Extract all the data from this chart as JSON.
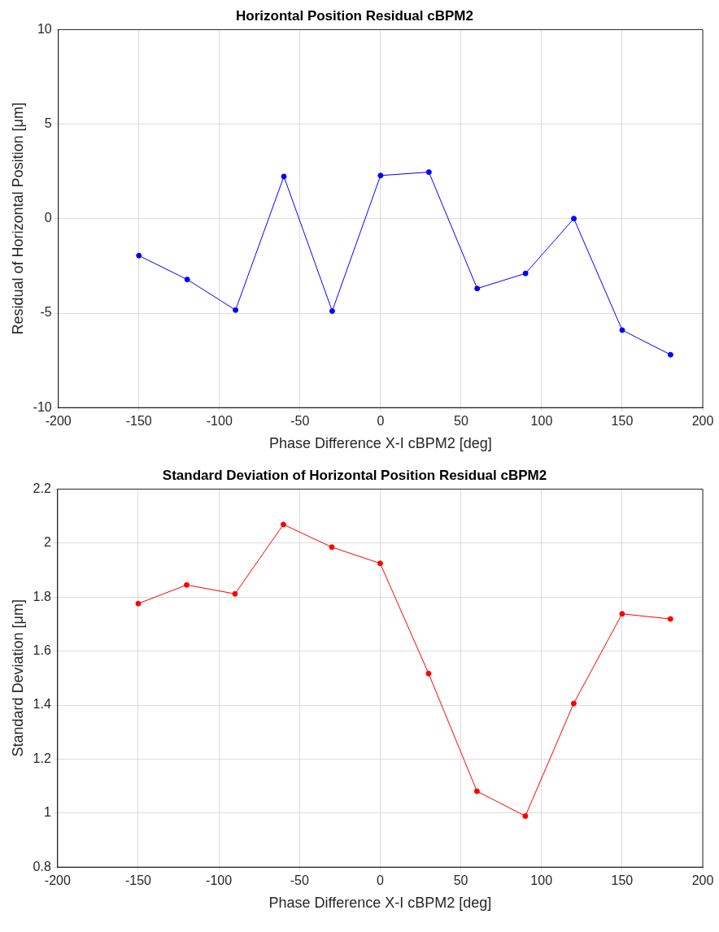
{
  "chart_data": [
    {
      "type": "line",
      "title": "Horizontal Position Residual cBPM2",
      "xlabel": "Phase Difference X-I cBPM2 [deg]",
      "ylabel": "Residual of Horizontal Position [μm]",
      "x": [
        -150,
        -120,
        -90,
        -60,
        -30,
        0,
        30,
        60,
        90,
        120,
        150,
        180
      ],
      "series": [
        {
          "color": "#0000ff",
          "values": [
            -1.96,
            -3.22,
            -4.84,
            2.23,
            -4.89,
            2.28,
            2.46,
            -3.7,
            -2.9,
            0.0,
            -5.9,
            -7.2
          ]
        }
      ],
      "xlim": [
        -200,
        200
      ],
      "xticks": [
        -200,
        -150,
        -100,
        -50,
        0,
        50,
        100,
        150,
        200
      ],
      "ylim": [
        -10,
        10
      ],
      "yticks": [
        -10,
        -5,
        0,
        5,
        10
      ],
      "grid": true,
      "marker": "circle",
      "line_style": "solid"
    },
    {
      "type": "line",
      "title": "Standard Deviation of Horizontal Position Residual cBPM2",
      "xlabel": "Phase Difference X-I cBPM2 [deg]",
      "ylabel": "Standard Deviation [μm]",
      "x": [
        -150,
        -120,
        -90,
        -60,
        -30,
        0,
        30,
        60,
        90,
        120,
        150,
        180
      ],
      "series": [
        {
          "color": "#ff0000",
          "values": [
            1.776,
            1.845,
            1.812,
            2.069,
            1.985,
            1.925,
            1.517,
            1.081,
            0.989,
            1.406,
            1.738,
            1.719
          ]
        }
      ],
      "xlim": [
        -200,
        200
      ],
      "xticks": [
        -200,
        -150,
        -100,
        -50,
        0,
        50,
        100,
        150,
        200
      ],
      "ylim": [
        0.8,
        2.2
      ],
      "yticks": [
        0.8,
        1,
        1.2,
        1.4,
        1.6,
        1.8,
        2,
        2.2
      ],
      "grid": true,
      "marker": "circle",
      "line_style": "solid"
    }
  ]
}
